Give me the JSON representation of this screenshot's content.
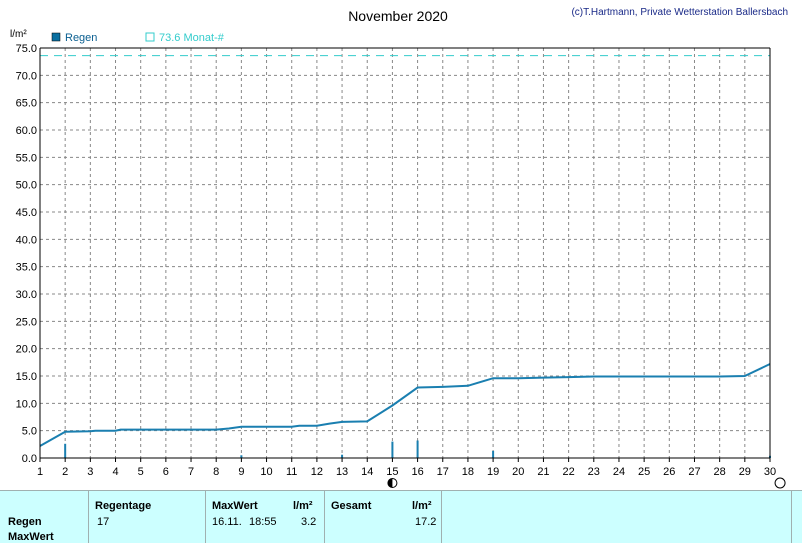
{
  "chart_data": {
    "type": "area",
    "title": "November 2020",
    "copyright": "(c)T.Hartmann, Private Wetterstation Ballersbach",
    "ylabel": "l/m²",
    "ylim": [
      0,
      75
    ],
    "xlim": [
      1,
      30
    ],
    "yticks": [
      "0.0",
      "5.0",
      "10.0",
      "15.0",
      "20.0",
      "25.0",
      "30.0",
      "35.0",
      "40.0",
      "45.0",
      "50.0",
      "55.0",
      "60.0",
      "65.0",
      "70.0",
      "75.0"
    ],
    "xticks": [
      "1",
      "2",
      "3",
      "4",
      "5",
      "6",
      "7",
      "8",
      "9",
      "10",
      "11",
      "12",
      "13",
      "14",
      "15",
      "16",
      "17",
      "18",
      "19",
      "20",
      "21",
      "22",
      "23",
      "24",
      "25",
      "26",
      "27",
      "28",
      "29",
      "30"
    ],
    "grid": true,
    "legend": [
      {
        "name": "Regen",
        "color": "#0a6fa0",
        "marker": "filled"
      },
      {
        "name": "73.6 Monat-#",
        "color": "#33cccc",
        "marker": "hollow"
      }
    ],
    "reference_line": {
      "value": 73.6,
      "color": "#33cccc",
      "style": "dashed"
    },
    "series": [
      {
        "name": "Regen",
        "kind": "cumulative-line",
        "color": "#1a7fb0",
        "points": [
          [
            1.0,
            2.2
          ],
          [
            2.0,
            4.8
          ],
          [
            3.0,
            4.9
          ],
          [
            3.2,
            5.0
          ],
          [
            4.0,
            5.0
          ],
          [
            4.2,
            5.2
          ],
          [
            8.0,
            5.2
          ],
          [
            8.5,
            5.4
          ],
          [
            9.0,
            5.7
          ],
          [
            11.0,
            5.7
          ],
          [
            11.3,
            5.9
          ],
          [
            12.0,
            5.9
          ],
          [
            12.5,
            6.3
          ],
          [
            13.0,
            6.6
          ],
          [
            14.0,
            6.7
          ],
          [
            15.0,
            9.6
          ],
          [
            16.0,
            12.9
          ],
          [
            17.0,
            13.0
          ],
          [
            18.0,
            13.2
          ],
          [
            19.0,
            14.6
          ],
          [
            20.0,
            14.6
          ],
          [
            21.0,
            14.7
          ],
          [
            22.0,
            14.8
          ],
          [
            23.0,
            14.9
          ],
          [
            28.0,
            14.9
          ],
          [
            29.0,
            15.0
          ],
          [
            30.0,
            17.2
          ]
        ]
      },
      {
        "name": "Regen-daily",
        "kind": "bars",
        "color": "#1a7fb0",
        "bars": [
          [
            2.0,
            2.6
          ],
          [
            9.0,
            0.5
          ],
          [
            13.0,
            0.6
          ],
          [
            15.0,
            3.0
          ],
          [
            16.0,
            3.2
          ],
          [
            19.0,
            1.3
          ],
          [
            30.0,
            0.4
          ]
        ]
      }
    ],
    "markers": [
      {
        "day": 15.0,
        "symbol": "new-moon"
      },
      {
        "day": 30.4,
        "symbol": "full-moon"
      }
    ]
  },
  "info": {
    "row_regen": "Regen",
    "row_maxwert": "MaxWert",
    "regentage_label": "Regentage",
    "regentage_value": "17",
    "maxwert_label": "MaxWert",
    "maxwert_unit": "l/m²",
    "maxwert_date": "16.11.",
    "maxwert_time": "18:55",
    "maxwert_value": "3.2",
    "gesamt_label": "Gesamt",
    "gesamt_unit": "l/m²",
    "gesamt_value": "17.2"
  }
}
